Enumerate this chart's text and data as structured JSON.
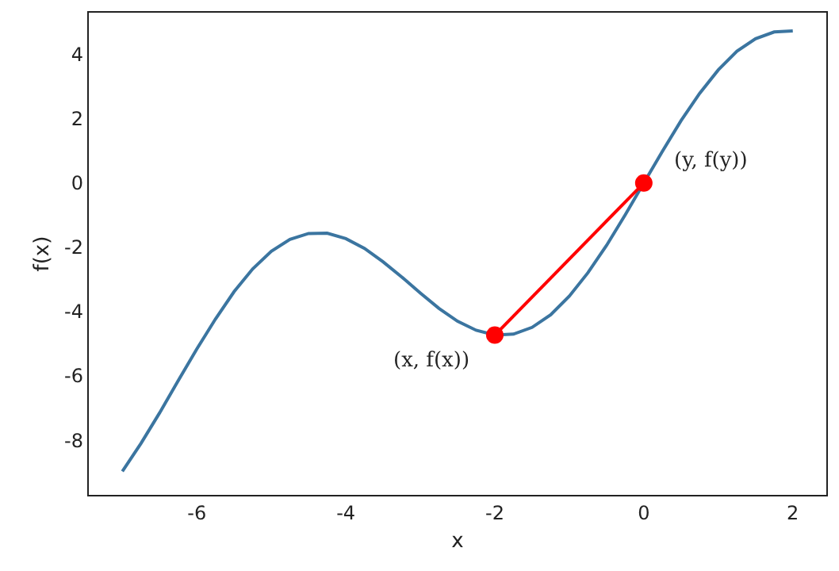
{
  "chart_data": {
    "type": "line",
    "xlabel": "x",
    "ylabel": "f(x)",
    "xlim": [
      -7.45,
      2.45
    ],
    "ylim": [
      -9.7,
      5.3
    ],
    "xticks": [
      -6,
      -4,
      -2,
      0,
      2
    ],
    "yticks": [
      -8,
      -6,
      -4,
      -2,
      0,
      2,
      4
    ],
    "series": [
      {
        "type": "line",
        "color": "#3b75a0",
        "marker": "none",
        "x": [
          -7,
          -6.75,
          -6.5,
          -6.25,
          -6,
          -5.75,
          -5.5,
          -5.25,
          -5,
          -4.75,
          -4.5,
          -4.25,
          -4,
          -3.75,
          -3.5,
          -3.25,
          -3,
          -2.75,
          -2.5,
          -2.25,
          -2,
          -1.75,
          -1.5,
          -1.25,
          -1,
          -0.75,
          -0.5,
          -0.25,
          0,
          0.25,
          0.5,
          0.75,
          1,
          1.25,
          1.5,
          1.75,
          2
        ],
        "values": [
          -8.97,
          -8.1,
          -7.15,
          -6.15,
          -5.16,
          -4.23,
          -3.38,
          -2.67,
          -2.12,
          -1.75,
          -1.57,
          -1.56,
          -1.73,
          -2.03,
          -2.45,
          -2.92,
          -3.42,
          -3.9,
          -4.3,
          -4.58,
          -4.73,
          -4.7,
          -4.49,
          -4.1,
          -3.52,
          -2.79,
          -1.94,
          -0.99,
          0,
          0.99,
          1.94,
          2.79,
          3.52,
          4.1,
          4.49,
          4.7,
          4.73
        ]
      },
      {
        "type": "line",
        "color": "#ff0000",
        "marker": "circle",
        "x": [
          -2,
          0
        ],
        "values": [
          -4.73,
          0
        ]
      }
    ],
    "annotations": [
      {
        "text": "(x, f(x))",
        "x": -2,
        "y": -4.73
      },
      {
        "text": "(y, f(y))",
        "x": 0,
        "y": 0
      }
    ]
  }
}
